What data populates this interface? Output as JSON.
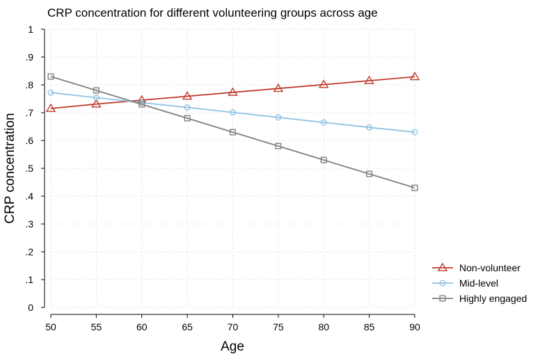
{
  "chart_data": {
    "type": "line",
    "title": "CRP concentration for different volunteering groups across age",
    "xlabel": "Age",
    "ylabel": "CRP concentration",
    "xlim": [
      50,
      90
    ],
    "ylim": [
      0,
      1
    ],
    "x": [
      50,
      55,
      60,
      65,
      70,
      75,
      80,
      85,
      90
    ],
    "x_ticks": [
      "50",
      "55",
      "60",
      "65",
      "70",
      "75",
      "80",
      "85",
      "90"
    ],
    "y_ticks": [
      {
        "value": 0,
        "label": "0"
      },
      {
        "value": 0.1,
        "label": ".1"
      },
      {
        "value": 0.2,
        "label": ".2"
      },
      {
        "value": 0.3,
        "label": ".3"
      },
      {
        "value": 0.4,
        "label": ".4"
      },
      {
        "value": 0.5,
        "label": ".5"
      },
      {
        "value": 0.6,
        "label": ".6"
      },
      {
        "value": 0.7,
        "label": ".7"
      },
      {
        "value": 0.8,
        "label": ".8"
      },
      {
        "value": 0.9,
        "label": ".9"
      },
      {
        "value": 1,
        "label": "1"
      }
    ],
    "grid": true,
    "legend_position": "right",
    "series": [
      {
        "name": "Non-volunteer",
        "color": "#c0392b",
        "marker": "triangle",
        "values": [
          0.715,
          0.731,
          0.745,
          0.759,
          0.773,
          0.787,
          0.801,
          0.815,
          0.829
        ]
      },
      {
        "name": "Mid-level",
        "color": "#8ec3e3",
        "marker": "circle",
        "values": [
          0.772,
          0.754,
          0.736,
          0.719,
          0.701,
          0.683,
          0.665,
          0.647,
          0.63
        ]
      },
      {
        "name": "Highly engaged",
        "color": "#7f7f7f",
        "marker": "square",
        "values": [
          0.83,
          0.78,
          0.73,
          0.68,
          0.63,
          0.58,
          0.53,
          0.48,
          0.43
        ]
      }
    ]
  }
}
